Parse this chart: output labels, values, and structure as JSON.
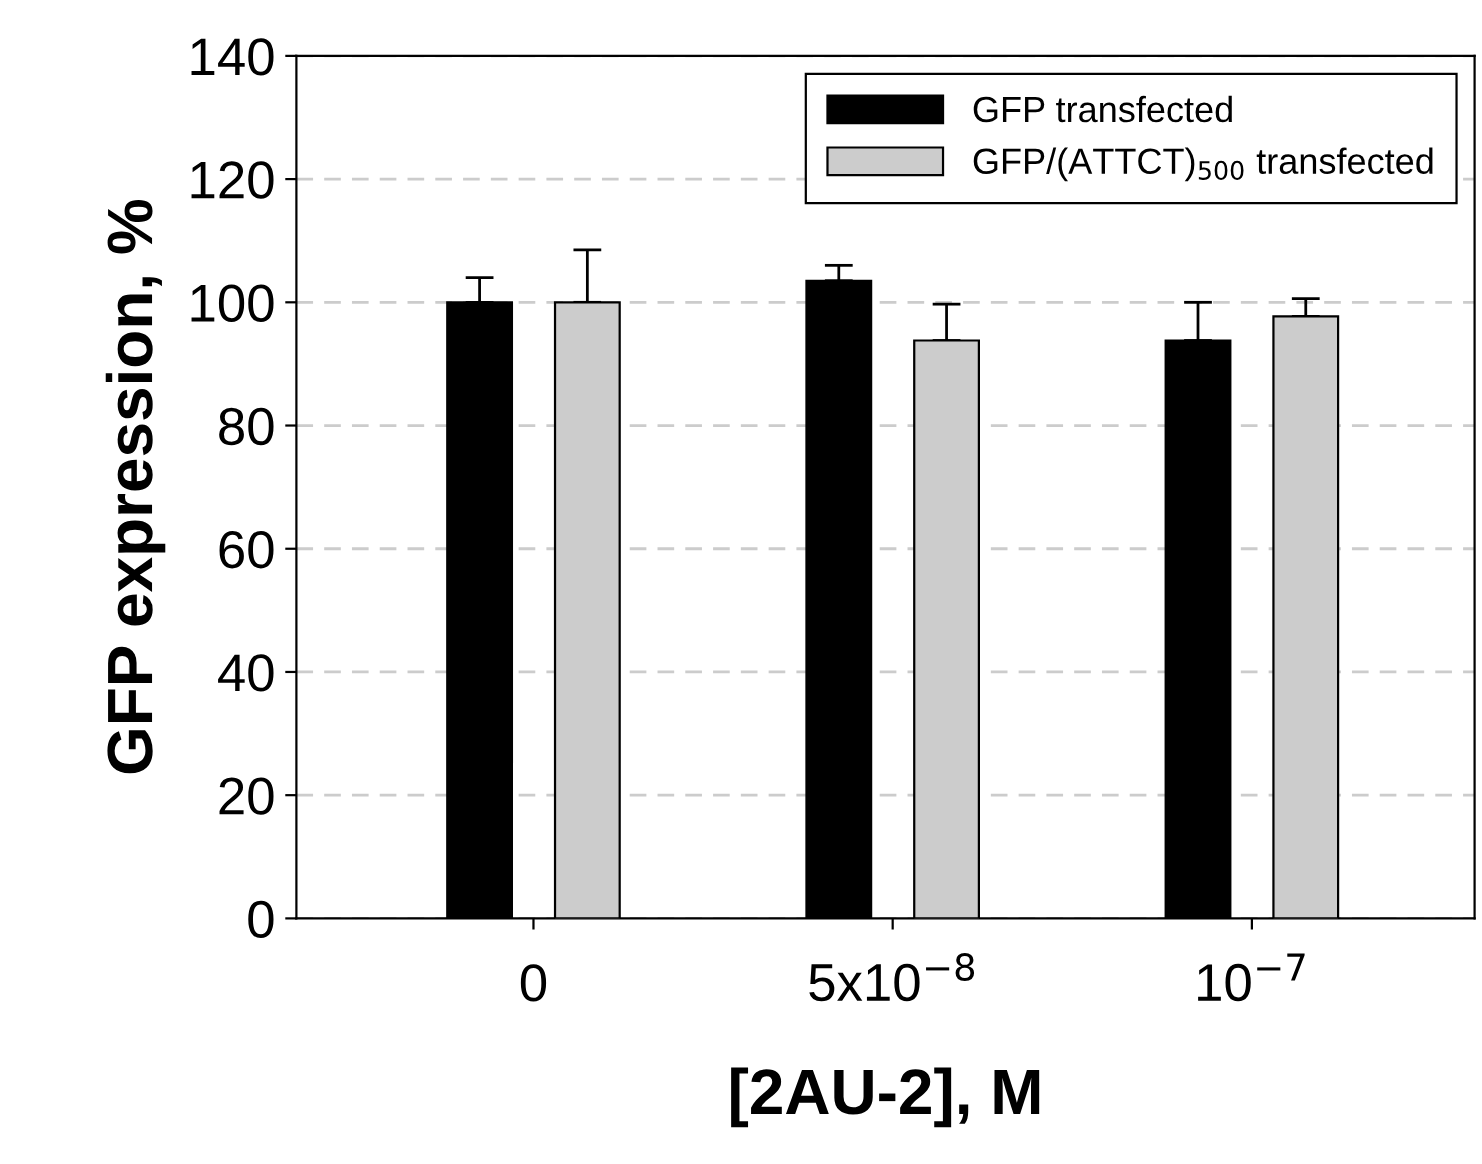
{
  "chart_data": {
    "type": "bar",
    "xlabel": "[2AU-2], M",
    "ylabel": "GFP expression, %",
    "categories": [
      "0",
      "5x10$^{−8}$",
      "10$^{−7}$"
    ],
    "series": [
      {
        "name": "GFP transfected",
        "color": "#000000",
        "values": [
          100,
          103.5,
          93.8
        ],
        "errors": [
          [
            100,
            104
          ],
          [
            103.5,
            106
          ],
          [
            93.8,
            100
          ]
        ]
      },
      {
        "name": "GFP/(ATTCT)$_{500}$ transfected",
        "color": "#cccccc",
        "values": [
          100,
          93.8,
          97.7
        ],
        "errors": [
          [
            100,
            108.5
          ],
          [
            93.8,
            99.7
          ],
          [
            97.7,
            100.6
          ]
        ]
      }
    ],
    "ylim": [
      0,
      140
    ],
    "yticks": [
      0,
      20,
      40,
      60,
      80,
      100,
      120,
      140
    ],
    "grid": "y",
    "legend": "top right"
  }
}
